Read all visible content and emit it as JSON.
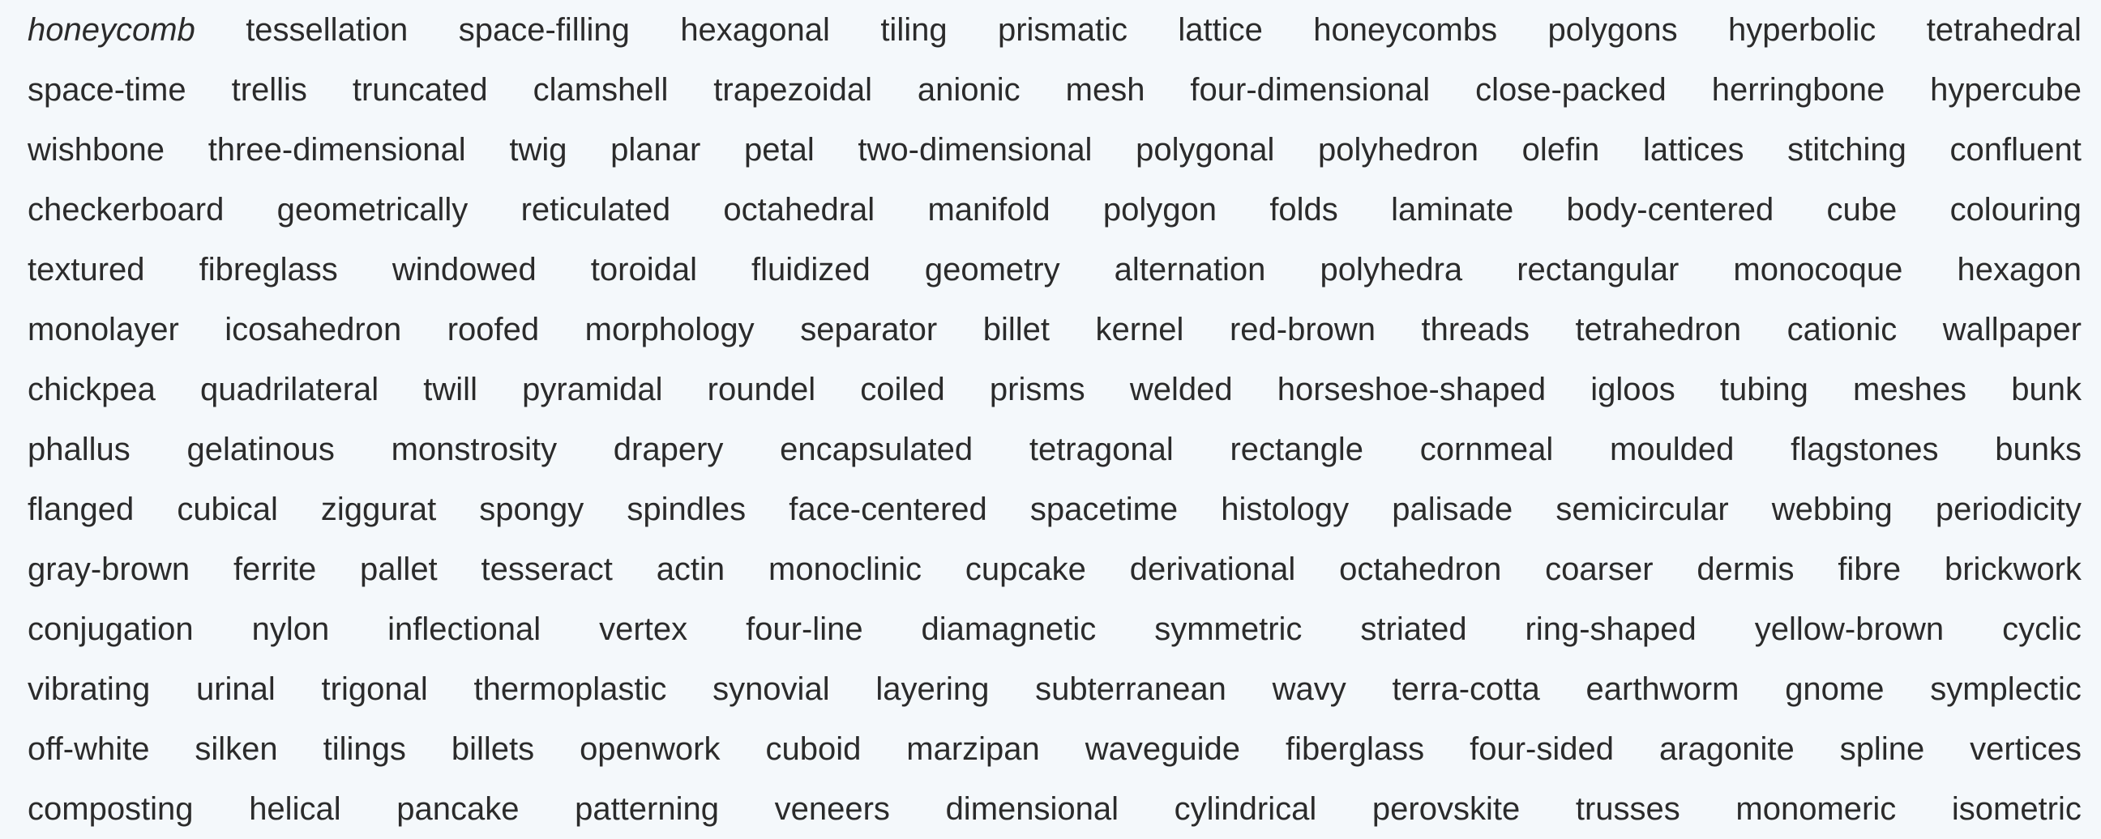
{
  "query_word": "honeycomb",
  "lines": [
    [
      "tessellation",
      "space-filling",
      "hexagonal",
      "tiling",
      "prismatic",
      "lattice",
      "honeycombs",
      "polygons",
      "hyperbolic",
      "tetrahedral"
    ],
    [
      "space-time",
      "trellis",
      "truncated",
      "clamshell",
      "trapezoidal",
      "anionic",
      "mesh",
      "four-dimensional",
      "close-packed",
      "herringbone",
      "hypercube"
    ],
    [
      "wishbone",
      "three-dimensional",
      "twig",
      "planar",
      "petal",
      "two-dimensional",
      "polygonal",
      "polyhedron",
      "olefin",
      "lattices",
      "stitching",
      "confluent"
    ],
    [
      "checkerboard",
      "geometrically",
      "reticulated",
      "octahedral",
      "manifold",
      "polygon",
      "folds",
      "laminate",
      "body-centered",
      "cube",
      "colouring"
    ],
    [
      "textured",
      "fibreglass",
      "windowed",
      "toroidal",
      "fluidized",
      "geometry",
      "alternation",
      "polyhedra",
      "rectangular",
      "monocoque",
      "hexagon"
    ],
    [
      "monolayer",
      "icosahedron",
      "roofed",
      "morphology",
      "separator",
      "billet",
      "kernel",
      "red-brown",
      "threads",
      "tetrahedron",
      "cationic",
      "wallpaper"
    ],
    [
      "chickpea",
      "quadrilateral",
      "twill",
      "pyramidal",
      "roundel",
      "coiled",
      "prisms",
      "welded",
      "horseshoe-shaped",
      "igloos",
      "tubing",
      "meshes",
      "bunk"
    ],
    [
      "phallus",
      "gelatinous",
      "monstrosity",
      "drapery",
      "encapsulated",
      "tetragonal",
      "rectangle",
      "cornmeal",
      "moulded",
      "flagstones",
      "bunks"
    ],
    [
      "flanged",
      "cubical",
      "ziggurat",
      "spongy",
      "spindles",
      "face-centered",
      "spacetime",
      "histology",
      "palisade",
      "semicircular",
      "webbing",
      "periodicity"
    ],
    [
      "gray-brown",
      "ferrite",
      "pallet",
      "tesseract",
      "actin",
      "monoclinic",
      "cupcake",
      "derivational",
      "octahedron",
      "coarser",
      "dermis",
      "fibre",
      "brickwork"
    ],
    [
      "conjugation",
      "nylon",
      "inflectional",
      "vertex",
      "four-line",
      "diamagnetic",
      "symmetric",
      "striated",
      "ring-shaped",
      "yellow-brown",
      "cyclic"
    ],
    [
      "vibrating",
      "urinal",
      "trigonal",
      "thermoplastic",
      "synovial",
      "layering",
      "subterranean",
      "wavy",
      "terra-cotta",
      "earthworm",
      "gnome",
      "symplectic"
    ],
    [
      "off-white",
      "silken",
      "tilings",
      "billets",
      "openwork",
      "cuboid",
      "marzipan",
      "waveguide",
      "fiberglass",
      "four-sided",
      "aragonite",
      "spline",
      "vertices"
    ],
    [
      "composting",
      "helical",
      "pancake",
      "patterning",
      "veneers",
      "dimensional",
      "cylindrical",
      "perovskite",
      "trusses",
      "monomeric",
      "isometric"
    ]
  ],
  "colors": {
    "background": "#f4f8fb",
    "text": "#2b2b2b"
  }
}
